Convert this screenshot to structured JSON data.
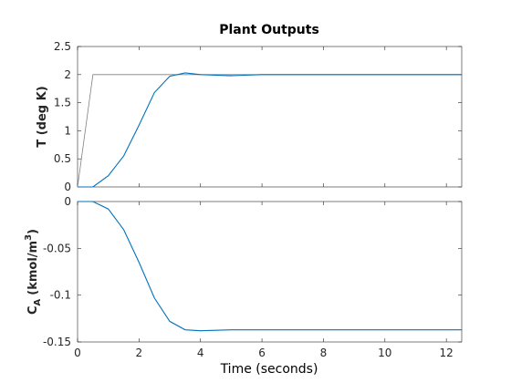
{
  "figure": {
    "title": "Plant Outputs",
    "xlabel": "Time (seconds)"
  },
  "chart_data": [
    {
      "type": "line",
      "title": "Plant Outputs",
      "ylabel": "T (deg K)",
      "xlim": [
        0,
        12.5
      ],
      "ylim": [
        0,
        2.5
      ],
      "xticks": [
        "0",
        "2",
        "4",
        "6",
        "8",
        "10",
        "12"
      ],
      "yticks": [
        "0",
        "0.5",
        "1",
        "1.5",
        "2",
        "2.5"
      ],
      "grid": false,
      "series": [
        {
          "role": "reference",
          "color": "#808080",
          "x": [
            0,
            0.5,
            12.5
          ],
          "y": [
            0,
            2,
            2
          ]
        },
        {
          "role": "output",
          "color": "#0072BD",
          "x": [
            0,
            0.5,
            1,
            1.5,
            2,
            2.5,
            3,
            3.5,
            4,
            5,
            6,
            8,
            10,
            12.5
          ],
          "y": [
            0,
            0,
            0.2,
            0.55,
            1.1,
            1.68,
            1.97,
            2.03,
            2.0,
            1.98,
            2.0,
            2.0,
            2.0,
            2.0
          ]
        }
      ]
    },
    {
      "type": "line",
      "ylabel": "C",
      "ylabel_sub": "A",
      "ylabel_unit": "(kmol/m",
      "ylabel_sup": "3",
      "ylabel_close": ")",
      "xlabel": "Time (seconds)",
      "xlim": [
        0,
        12.5
      ],
      "ylim": [
        -0.15,
        0
      ],
      "xticks": [
        "0",
        "2",
        "4",
        "6",
        "8",
        "10",
        "12"
      ],
      "yticks": [
        "0",
        "-0.05",
        "-0.1",
        "-0.15"
      ],
      "grid": false,
      "series": [
        {
          "role": "output",
          "color": "#0072BD",
          "x": [
            0,
            0.5,
            1,
            1.5,
            2,
            2.5,
            3,
            3.5,
            4,
            5,
            6,
            8,
            10,
            12.5
          ],
          "y": [
            0,
            0,
            -0.008,
            -0.03,
            -0.065,
            -0.103,
            -0.128,
            -0.137,
            -0.138,
            -0.137,
            -0.137,
            -0.137,
            -0.137,
            -0.137
          ]
        }
      ]
    }
  ]
}
